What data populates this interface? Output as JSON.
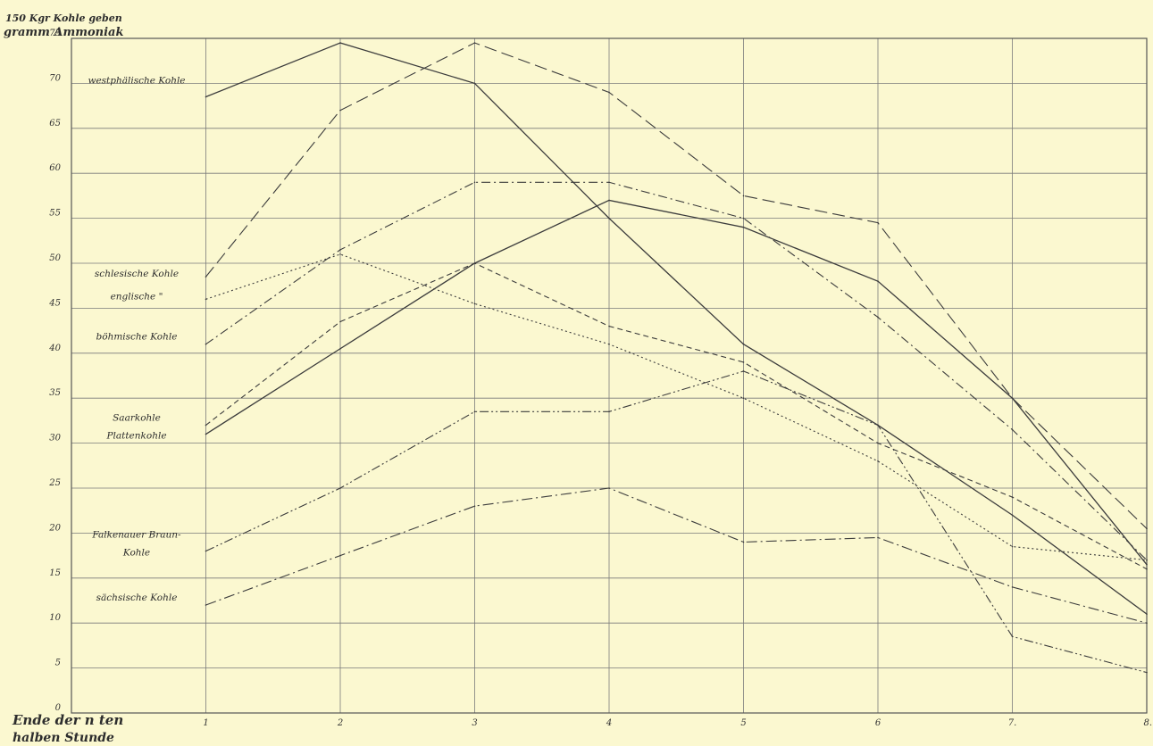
{
  "chart_data": {
    "type": "line",
    "ylabel": [
      "150 Kgr Kohle geben",
      "gramm Ammoniak"
    ],
    "xlabel": [
      "Ende der n ten",
      "halben Stunde"
    ],
    "x": [
      1,
      2,
      3,
      4,
      5,
      6,
      7,
      8
    ],
    "xticks": [
      "1",
      "2",
      "3",
      "4",
      "5",
      "6",
      "7.",
      "8."
    ],
    "yticks": [
      "0",
      "5",
      "10",
      "15",
      "20",
      "25",
      "30",
      "35",
      "40",
      "45",
      "50",
      "55",
      "60",
      "65",
      "70",
      "75"
    ],
    "xlim": [
      0,
      8
    ],
    "ylim": [
      0,
      75
    ],
    "grid": true,
    "series": [
      {
        "name": "westphälische Kohle",
        "values": [
          68.5,
          74.5,
          70,
          55,
          41,
          32,
          22,
          11
        ],
        "dash": ""
      },
      {
        "name": "schlesische Kohle",
        "values": [
          48.5,
          67,
          74.5,
          69,
          57.5,
          54.5,
          35,
          20.5
        ],
        "dash": "14 6"
      },
      {
        "name": "englische Kohle",
        "values": [
          46,
          51,
          45.5,
          41,
          35,
          28,
          18.5,
          17
        ],
        "dash": "2 3"
      },
      {
        "name": "böhmische Kohle",
        "values": [
          41,
          51.5,
          59,
          59,
          55,
          44,
          31.5,
          17
        ],
        "dash": "10 4 2 4"
      },
      {
        "name": "Saarkohle",
        "values": [
          31,
          40.5,
          50,
          57,
          54,
          48,
          35,
          16.5
        ],
        "dash": ""
      },
      {
        "name": "Plattenkohle",
        "values": [
          32,
          43.5,
          50,
          43,
          39,
          30,
          24,
          16
        ],
        "dash": "6 4"
      },
      {
        "name": "Falkenauer Braunkohle",
        "values": [
          18,
          25,
          33.5,
          33.5,
          38,
          32,
          8.5,
          4.5
        ],
        "dash": "10 3 2 3 2 3"
      },
      {
        "name": "sächsische Kohle",
        "values": [
          12,
          17.5,
          23,
          25,
          19,
          19.5,
          14,
          10
        ],
        "dash": "12 4 2 4"
      }
    ],
    "legend_labels": [
      {
        "text": "westphälische Kohle",
        "y": 70
      },
      {
        "text": "schlesische Kohle",
        "y": 48.5
      },
      {
        "text": "englische   \"",
        "y": 46
      },
      {
        "text": "böhmische Kohle",
        "y": 41.5
      },
      {
        "text": "Saarkohle",
        "y": 32.5
      },
      {
        "text": "Plattenkohle",
        "y": 30.5
      },
      {
        "text": "Falkenauer Braun-",
        "y": 19.5
      },
      {
        "text": "Kohle",
        "y": 17.5
      },
      {
        "text": "sächsische Kohle",
        "y": 12.5
      }
    ]
  }
}
